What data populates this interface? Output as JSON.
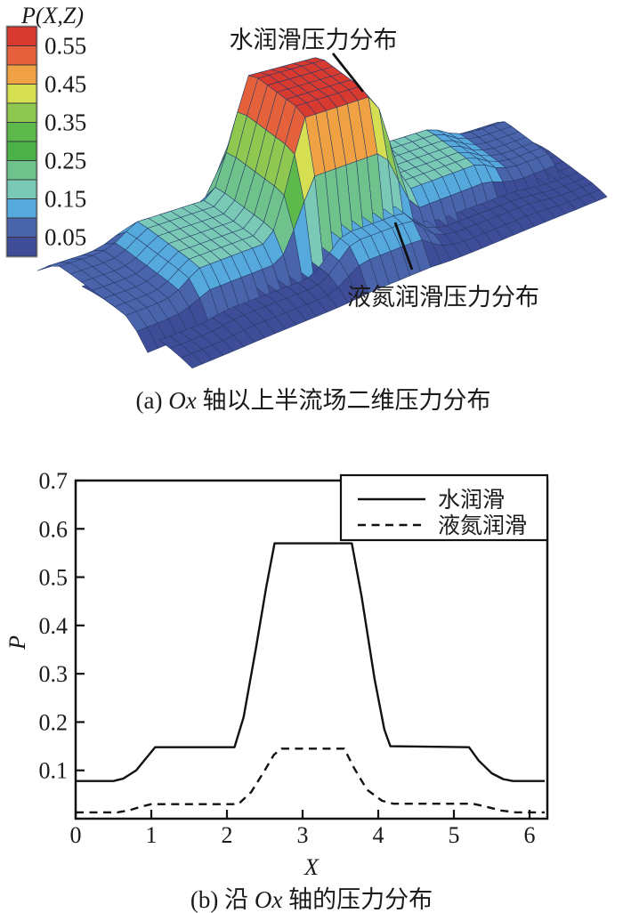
{
  "figure": {
    "captions": {
      "a": {
        "prefix": "(a) ",
        "italic": "Ox",
        "suffix": " 轴以上半流场二维压力分布"
      },
      "b": {
        "prefix": "(b) 沿 ",
        "italic": "Ox",
        "suffix": " 轴的压力分布"
      }
    }
  },
  "chart_data": [
    {
      "type": "surface",
      "title": "P(X,Z)",
      "colorbar": {
        "labels": [
          "0.55",
          "0.45",
          "0.35",
          "0.25",
          "0.15",
          "0.05"
        ],
        "value_min": 0.0,
        "value_max": 0.6,
        "band_step": 0.05,
        "colors_top_to_bottom": [
          "#d93a30",
          "#e4613b",
          "#efa143",
          "#d6de52",
          "#8fc850",
          "#5eb94b",
          "#4db14a",
          "#6fc28c",
          "#7ac9b7",
          "#56a9dc",
          "#4a64ab",
          "#3f4d98"
        ]
      },
      "annotations": [
        {
          "id": "water",
          "text": "水润滑压力分布"
        },
        {
          "id": "nitrogen",
          "text": "液氮润滑压力分布"
        }
      ],
      "x_range": [
        0,
        6.2
      ],
      "z_range": [
        0,
        2
      ],
      "surfaces": [
        {
          "name": "water-lubrication",
          "label": "水润滑",
          "profile_x_P": [
            [
              0,
              0.078
            ],
            [
              0.5,
              0.078
            ],
            [
              0.63,
              0.083
            ],
            [
              0.8,
              0.1
            ],
            [
              0.93,
              0.125
            ],
            [
              1.05,
              0.148
            ],
            [
              2.1,
              0.148
            ],
            [
              2.22,
              0.21
            ],
            [
              2.38,
              0.35
            ],
            [
              2.52,
              0.48
            ],
            [
              2.63,
              0.57
            ],
            [
              3.65,
              0.57
            ],
            [
              3.78,
              0.46
            ],
            [
              3.95,
              0.29
            ],
            [
              4.08,
              0.185
            ],
            [
              4.16,
              0.15
            ],
            [
              5.2,
              0.148
            ],
            [
              5.33,
              0.12
            ],
            [
              5.5,
              0.094
            ],
            [
              5.65,
              0.082
            ],
            [
              5.78,
              0.078
            ],
            [
              6.2,
              0.078
            ]
          ]
        },
        {
          "name": "liquid-nitrogen-lubrication",
          "label": "液氮润滑",
          "profile_x_P": [
            [
              0,
              0.013
            ],
            [
              0.55,
              0.013
            ],
            [
              0.7,
              0.017
            ],
            [
              0.87,
              0.025
            ],
            [
              1,
              0.03
            ],
            [
              2.15,
              0.03
            ],
            [
              2.32,
              0.055
            ],
            [
              2.5,
              0.1
            ],
            [
              2.62,
              0.132
            ],
            [
              2.72,
              0.145
            ],
            [
              3.55,
              0.145
            ],
            [
              3.68,
              0.105
            ],
            [
              3.85,
              0.06
            ],
            [
              4.05,
              0.037
            ],
            [
              4.2,
              0.031
            ],
            [
              5.25,
              0.031
            ],
            [
              5.42,
              0.025
            ],
            [
              5.62,
              0.017
            ],
            [
              5.82,
              0.013
            ],
            [
              6.2,
              0.013
            ]
          ]
        }
      ]
    },
    {
      "type": "line",
      "xlabel": "X",
      "ylabel": "P",
      "xlim": [
        0,
        6.24
      ],
      "ylim": [
        0,
        0.7
      ],
      "xticks": [
        "0",
        "1",
        "2",
        "3",
        "4",
        "5",
        "6"
      ],
      "yticks": [
        "0.1",
        "0.2",
        "0.3",
        "0.4",
        "0.5",
        "0.6",
        "0.7"
      ],
      "legend": {
        "position": "top-right"
      },
      "series": [
        {
          "name": "水润滑",
          "style": "solid",
          "points": [
            [
              0,
              0.078
            ],
            [
              0.5,
              0.078
            ],
            [
              0.63,
              0.083
            ],
            [
              0.8,
              0.1
            ],
            [
              0.93,
              0.125
            ],
            [
              1.05,
              0.148
            ],
            [
              2.1,
              0.148
            ],
            [
              2.22,
              0.21
            ],
            [
              2.38,
              0.35
            ],
            [
              2.52,
              0.48
            ],
            [
              2.63,
              0.57
            ],
            [
              3.65,
              0.57
            ],
            [
              3.78,
              0.46
            ],
            [
              3.95,
              0.29
            ],
            [
              4.08,
              0.185
            ],
            [
              4.16,
              0.15
            ],
            [
              5.2,
              0.148
            ],
            [
              5.33,
              0.12
            ],
            [
              5.5,
              0.094
            ],
            [
              5.65,
              0.082
            ],
            [
              5.78,
              0.078
            ],
            [
              6.2,
              0.078
            ]
          ]
        },
        {
          "name": "液氮润滑",
          "style": "dashed",
          "points": [
            [
              0,
              0.013
            ],
            [
              0.55,
              0.013
            ],
            [
              0.7,
              0.017
            ],
            [
              0.87,
              0.025
            ],
            [
              1,
              0.03
            ],
            [
              2.15,
              0.03
            ],
            [
              2.32,
              0.055
            ],
            [
              2.5,
              0.1
            ],
            [
              2.62,
              0.132
            ],
            [
              2.72,
              0.145
            ],
            [
              3.55,
              0.145
            ],
            [
              3.68,
              0.105
            ],
            [
              3.85,
              0.06
            ],
            [
              4.05,
              0.037
            ],
            [
              4.2,
              0.031
            ],
            [
              5.25,
              0.031
            ],
            [
              5.42,
              0.025
            ],
            [
              5.62,
              0.017
            ],
            [
              5.82,
              0.013
            ],
            [
              6.2,
              0.013
            ]
          ]
        }
      ]
    }
  ]
}
